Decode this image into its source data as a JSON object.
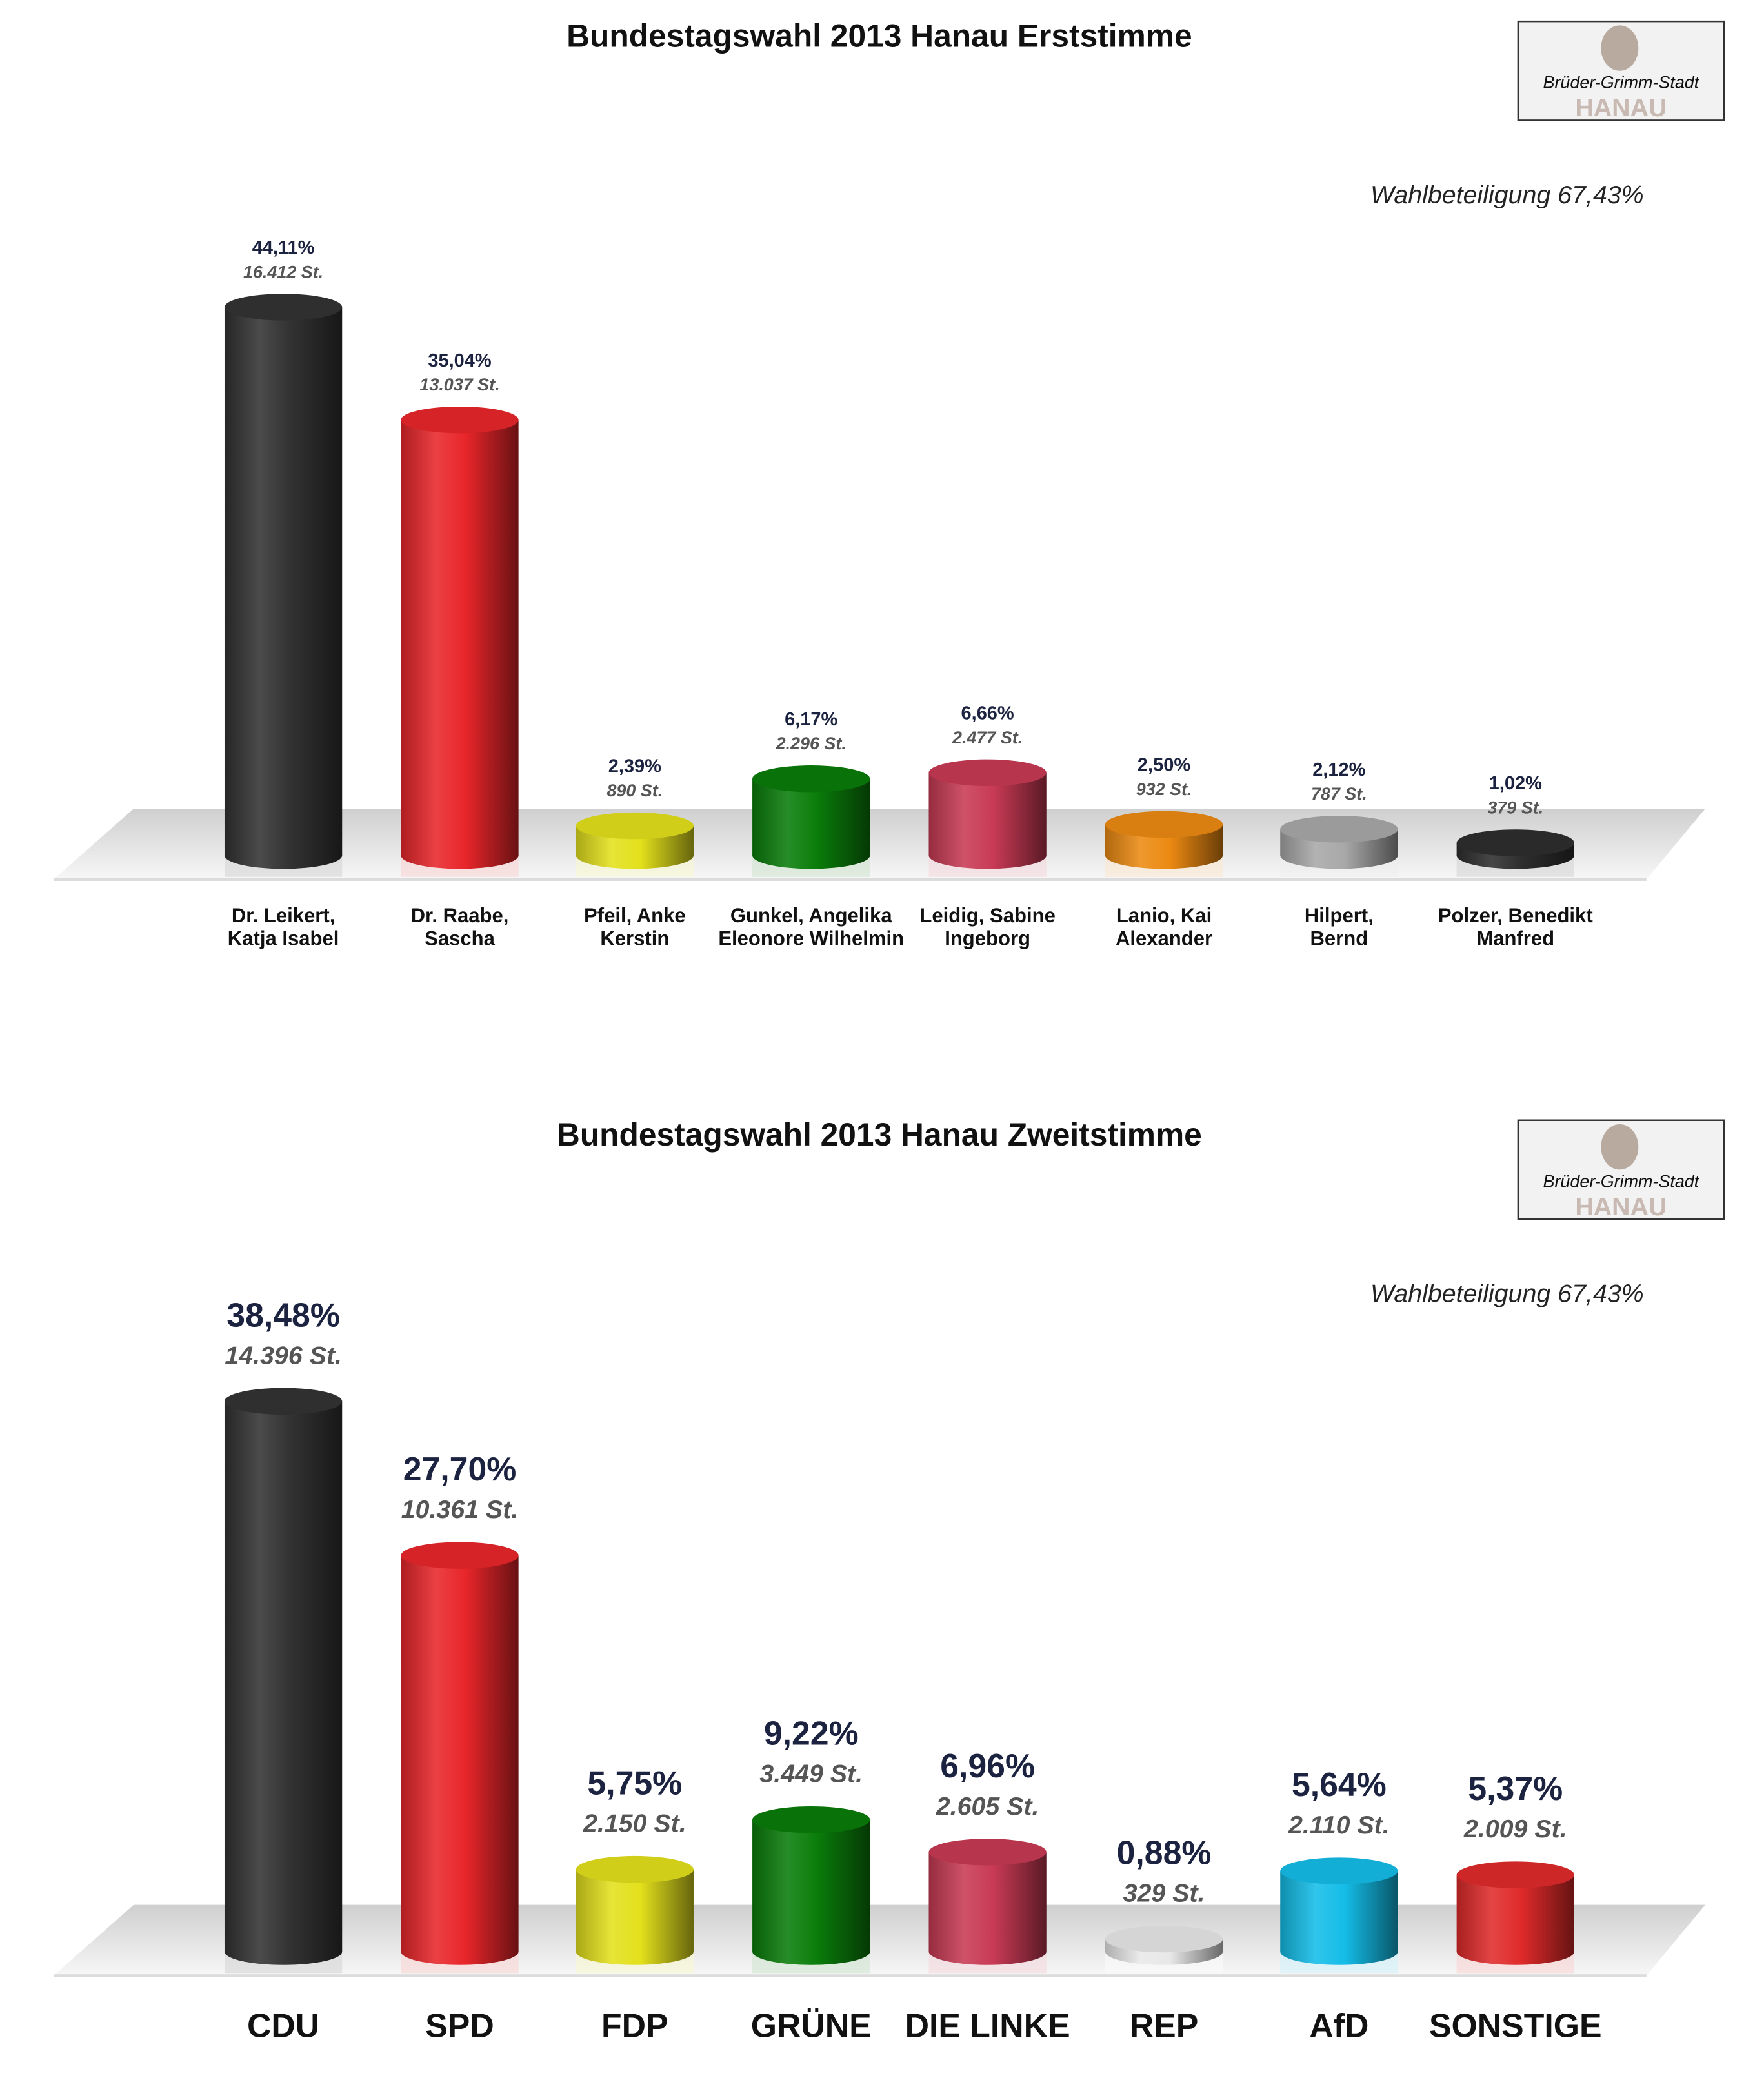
{
  "chart_data": [
    {
      "type": "bar",
      "title": "Bundestagswahl 2013 Hanau Erststimme",
      "annotation": "Wahlbeteiligung 67,43%",
      "logo_text": "HANAU Brüder-Grimm-Stadt",
      "ylim": [
        0,
        45
      ],
      "grid": false,
      "categories": [
        "Dr. Leikert,|Katja Isabel",
        "Dr. Raabe,|Sascha",
        "Pfeil, Anke|Kerstin",
        "Gunkel, Angelika|Eleonore Wilhelmin",
        "Leidig, Sabine|Ingeborg",
        "Lanio, Kai|Alexander",
        "Hilpert,|Bernd",
        "Polzer, Benedikt|Manfred"
      ],
      "values": [
        44.11,
        35.04,
        2.39,
        6.17,
        6.66,
        2.5,
        2.12,
        1.02
      ],
      "value_labels": [
        "44,11%",
        "35,04%",
        "2,39%",
        "6,17%",
        "6,66%",
        "2,50%",
        "2,12%",
        "1,02%"
      ],
      "vote_labels": [
        "16.412 St.",
        "13.037 St.",
        "890 St.",
        "2.296 St.",
        "2.477 St.",
        "932 St.",
        "787 St.",
        "379 St."
      ],
      "colors": [
        "#333333",
        "#e8262a",
        "#e3e01c",
        "#0a7d0a",
        "#c83a55",
        "#ec8a12",
        "#a8a8a8",
        "#2e2e2e"
      ]
    },
    {
      "type": "bar",
      "title": "Bundestagswahl 2013 Hanau Zweitstimme",
      "annotation": "Wahlbeteiligung 67,43%",
      "logo_text": "HANAU Brüder-Grimm-Stadt",
      "ylim": [
        0,
        40
      ],
      "grid": false,
      "categories": [
        "CDU",
        "SPD",
        "FDP",
        "GRÜNE",
        "DIE LINKE",
        "REP",
        "AfD",
        "SONSTIGE"
      ],
      "values": [
        38.48,
        27.7,
        5.75,
        9.22,
        6.96,
        0.88,
        5.64,
        5.37
      ],
      "value_labels": [
        "38,48%",
        "27,70%",
        "5,75%",
        "9,22%",
        "6,96%",
        "0,88%",
        "5,64%",
        "5,37%"
      ],
      "vote_labels": [
        "14.396 St.",
        "10.361 St.",
        "2.150 St.",
        "3.449 St.",
        "2.605 St.",
        "329 St.",
        "2.110 St.",
        "2.009 St."
      ],
      "colors": [
        "#333333",
        "#e8262a",
        "#e3e01c",
        "#0a7d0a",
        "#c83a55",
        "#e8e8e8",
        "#14bde8",
        "#e02a2a"
      ]
    }
  ]
}
